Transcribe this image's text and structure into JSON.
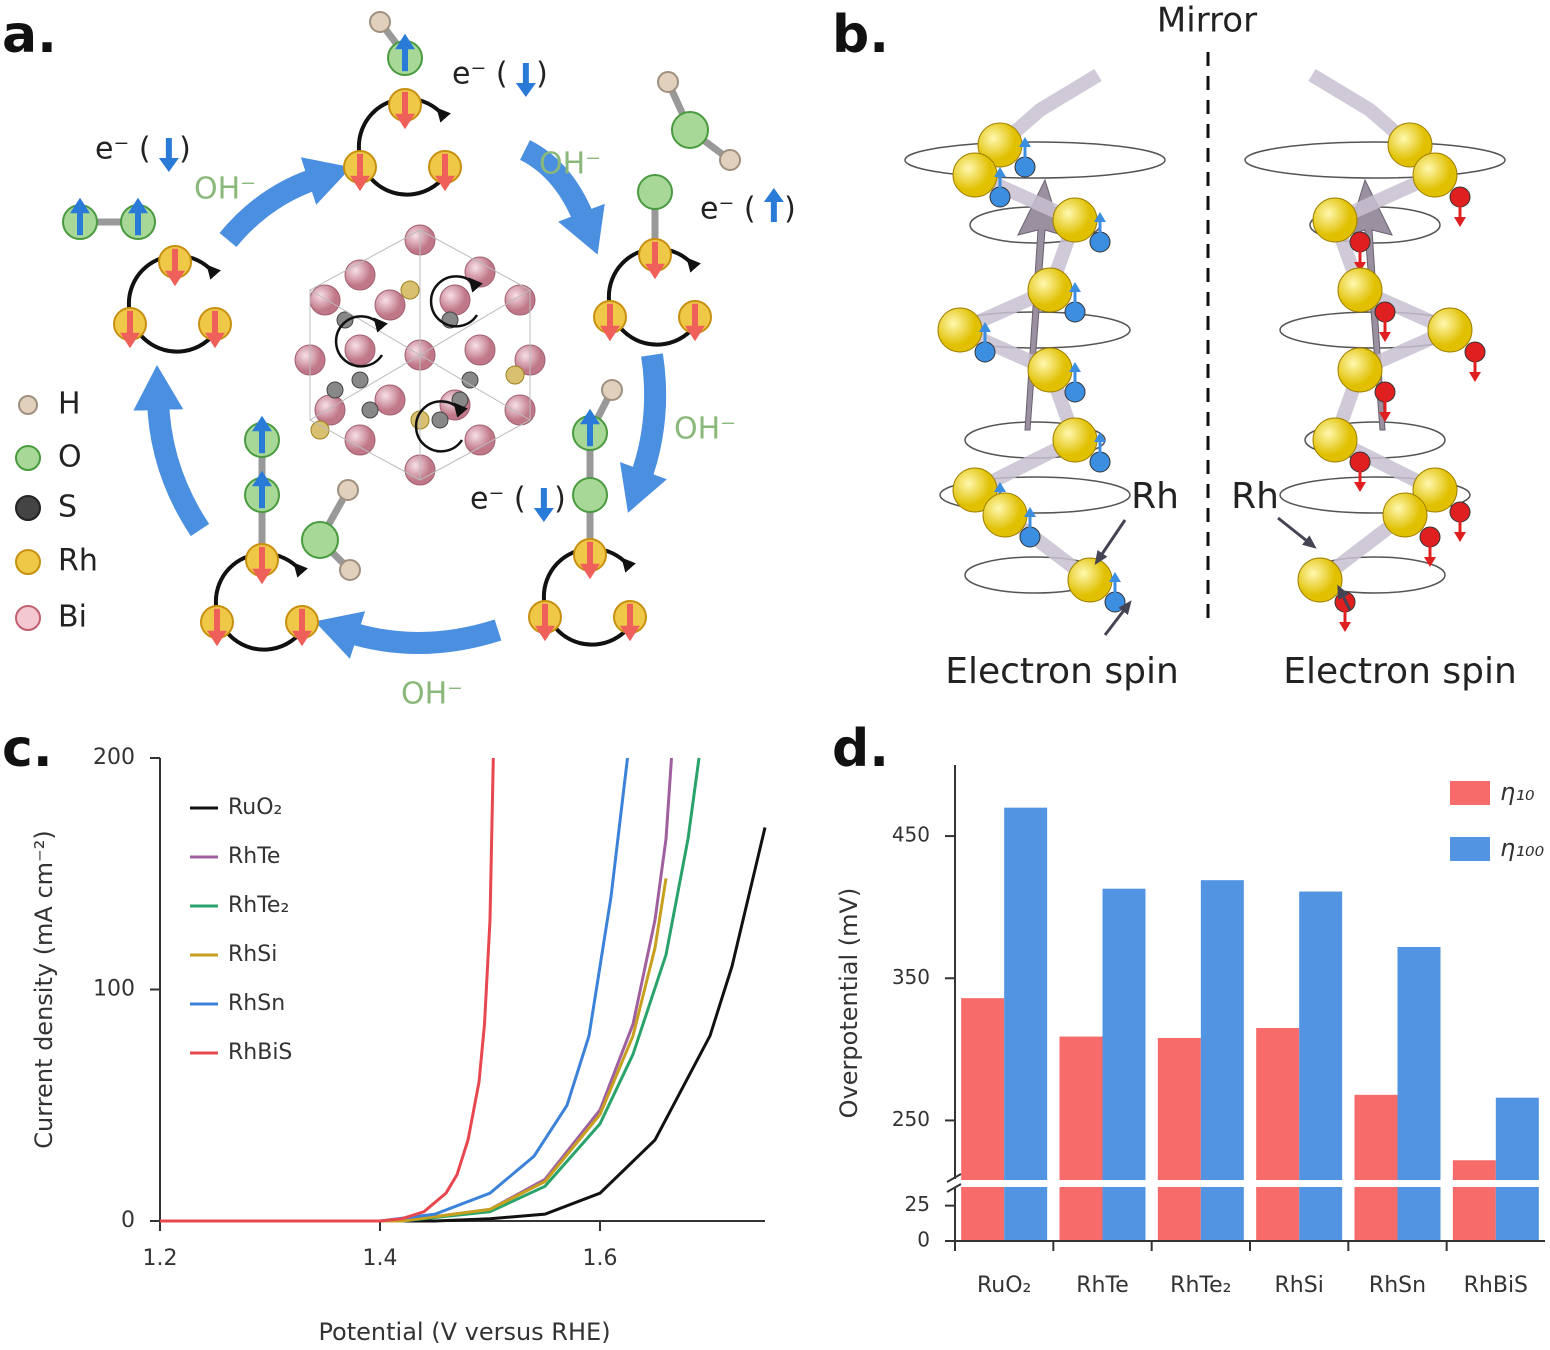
{
  "panel_labels": [
    "a.",
    "b.",
    "c.",
    "d."
  ],
  "diagram_a": {
    "legend": [
      "H",
      "O",
      "S",
      "Rh",
      "Bi"
    ],
    "electron_labels": [
      "e⁻ (   )",
      "e⁻ (   )",
      "e⁻ (   )",
      "e⁻ (   )"
    ],
    "hydroxide_labels": [
      "OH⁻",
      "OH⁻",
      "OH⁻",
      "OH⁻"
    ]
  },
  "diagram_b": {
    "mirror": "Mirror",
    "atom_labels": [
      "Rh",
      "Rh"
    ],
    "spin_labels": [
      "Electron spin",
      "Electron spin"
    ]
  },
  "chart_data": [
    {
      "type": "line",
      "xlabel": "Potential (V versus RHE)",
      "ylabel": "Current density (mA cm⁻²)",
      "xlim": [
        1.2,
        1.75
      ],
      "ylim": [
        0,
        200
      ],
      "xticks": [
        1.2,
        1.4,
        1.6
      ],
      "yticks": [
        0,
        100,
        200
      ],
      "series": [
        {
          "name": "RuO₂",
          "color": "#111111",
          "x": [
            1.2,
            1.45,
            1.5,
            1.55,
            1.6,
            1.65,
            1.7,
            1.72,
            1.74,
            1.75
          ],
          "values": [
            0,
            0,
            1,
            3,
            12,
            35,
            80,
            110,
            150,
            170
          ]
        },
        {
          "name": "RhTe",
          "color": "#a0609f",
          "x": [
            1.2,
            1.42,
            1.5,
            1.55,
            1.6,
            1.63,
            1.65,
            1.66,
            1.665
          ],
          "values": [
            0,
            0,
            5,
            18,
            48,
            85,
            130,
            165,
            200
          ]
        },
        {
          "name": "RhTe₂",
          "color": "#2aa36b",
          "x": [
            1.2,
            1.42,
            1.5,
            1.55,
            1.6,
            1.63,
            1.66,
            1.68,
            1.69
          ],
          "values": [
            0,
            0,
            4,
            15,
            42,
            72,
            115,
            165,
            200
          ]
        },
        {
          "name": "RhSi",
          "color": "#c8a020",
          "x": [
            1.2,
            1.42,
            1.5,
            1.55,
            1.6,
            1.63,
            1.65,
            1.66
          ],
          "values": [
            0,
            0,
            5,
            17,
            46,
            80,
            118,
            148
          ]
        },
        {
          "name": "RhSn",
          "color": "#3b82d8",
          "x": [
            1.2,
            1.4,
            1.45,
            1.5,
            1.54,
            1.57,
            1.59,
            1.61,
            1.62,
            1.625
          ],
          "values": [
            0,
            0,
            3,
            12,
            28,
            50,
            80,
            140,
            180,
            200
          ]
        },
        {
          "name": "RhBiS",
          "color": "#e8474f",
          "x": [
            1.2,
            1.4,
            1.42,
            1.44,
            1.46,
            1.47,
            1.48,
            1.49,
            1.495,
            1.5,
            1.503
          ],
          "values": [
            0,
            0,
            1,
            4,
            12,
            20,
            35,
            60,
            85,
            130,
            200
          ]
        }
      ]
    },
    {
      "type": "bar",
      "ylabel": "Overpotential (mV)",
      "categories": [
        "RuO₂",
        "RhTe",
        "RhTe₂",
        "RhSi",
        "RhSn",
        "RhBiS"
      ],
      "ylim": [
        0,
        500
      ],
      "y_break": [
        41,
        206
      ],
      "yticks": [
        0,
        25,
        250,
        350,
        450
      ],
      "legend": "upper right",
      "series": [
        {
          "name": "η₁₀",
          "color": "#f76b6b",
          "values": [
            336,
            309,
            308,
            315,
            268,
            222
          ]
        },
        {
          "name": "η₁₀₀",
          "color": "#5294e2",
          "values": [
            470,
            413,
            419,
            411,
            372,
            266
          ]
        }
      ]
    }
  ]
}
